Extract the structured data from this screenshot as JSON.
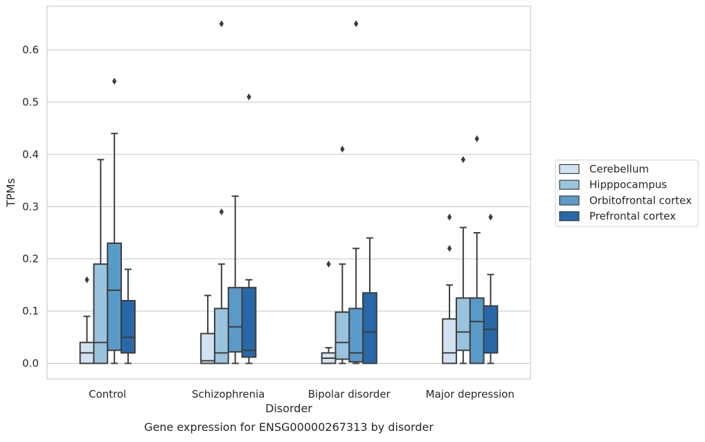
{
  "chart_data": {
    "type": "box",
    "title": "Gene expression for ENSG00000267313 by disorder",
    "xlabel": "Disorder",
    "ylabel": "TPMs",
    "ylim": [
      -0.032,
      0.688
    ],
    "yticks": [
      0.0,
      0.1,
      0.2,
      0.3,
      0.4,
      0.5,
      0.6
    ],
    "ytick_labels": [
      "0.0",
      "0.1",
      "0.2",
      "0.3",
      "0.4",
      "0.5",
      "0.6"
    ],
    "grid": true,
    "legend_position": "center-right outside",
    "categories": [
      "Control",
      "Schizophrenia",
      "Bipolar disorder",
      "Major depression"
    ],
    "series": [
      {
        "name": "Cerebellum",
        "color": "#d2e2f1",
        "boxes": [
          {
            "min": 0.0,
            "q1": 0.0,
            "median": 0.02,
            "q3": 0.04,
            "max": 0.09,
            "outliers": [
              0.16
            ]
          },
          {
            "min": 0.0,
            "q1": 0.0,
            "median": 0.005,
            "q3": 0.057,
            "max": 0.13,
            "outliers": []
          },
          {
            "min": 0.0,
            "q1": 0.0,
            "median": 0.01,
            "q3": 0.02,
            "max": 0.03,
            "outliers": [
              0.19
            ]
          },
          {
            "min": 0.0,
            "q1": 0.0,
            "median": 0.02,
            "q3": 0.085,
            "max": 0.15,
            "outliers": [
              0.22,
              0.28
            ]
          }
        ]
      },
      {
        "name": "Hipppocampus",
        "color": "#9ac3dd",
        "boxes": [
          {
            "min": 0.0,
            "q1": 0.0,
            "median": 0.04,
            "q3": 0.19,
            "max": 0.39,
            "outliers": []
          },
          {
            "min": 0.0,
            "q1": 0.0,
            "median": 0.02,
            "q3": 0.105,
            "max": 0.19,
            "outliers": [
              0.29,
              0.65
            ]
          },
          {
            "min": 0.0,
            "q1": 0.008,
            "median": 0.04,
            "q3": 0.098,
            "max": 0.19,
            "outliers": [
              0.41
            ]
          },
          {
            "min": 0.0,
            "q1": 0.025,
            "median": 0.06,
            "q3": 0.125,
            "max": 0.26,
            "outliers": [
              0.39
            ]
          }
        ]
      },
      {
        "name": "Orbitofrontal cortex",
        "color": "#5a9ac8",
        "boxes": [
          {
            "min": 0.0,
            "q1": 0.025,
            "median": 0.14,
            "q3": 0.23,
            "max": 0.44,
            "outliers": [
              0.54
            ]
          },
          {
            "min": 0.0,
            "q1": 0.022,
            "median": 0.07,
            "q3": 0.145,
            "max": 0.32,
            "outliers": []
          },
          {
            "min": 0.0,
            "q1": 0.003,
            "median": 0.02,
            "q3": 0.105,
            "max": 0.22,
            "outliers": [
              0.65
            ]
          },
          {
            "min": 0.0,
            "q1": 0.0,
            "median": 0.08,
            "q3": 0.125,
            "max": 0.25,
            "outliers": [
              0.43
            ]
          }
        ]
      },
      {
        "name": "Prefrontal cortex",
        "color": "#2867a8",
        "boxes": [
          {
            "min": 0.0,
            "q1": 0.02,
            "median": 0.05,
            "q3": 0.12,
            "max": 0.18,
            "outliers": []
          },
          {
            "min": 0.0,
            "q1": 0.012,
            "median": 0.025,
            "q3": 0.145,
            "max": 0.16,
            "outliers": [
              0.51
            ]
          },
          {
            "min": 0.0,
            "q1": 0.0,
            "median": 0.06,
            "q3": 0.135,
            "max": 0.24,
            "outliers": []
          },
          {
            "min": 0.0,
            "q1": 0.02,
            "median": 0.065,
            "q3": 0.11,
            "max": 0.17,
            "outliers": [
              0.28
            ]
          }
        ]
      }
    ]
  }
}
